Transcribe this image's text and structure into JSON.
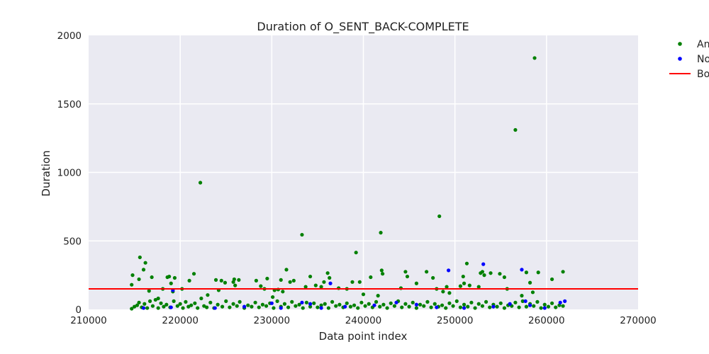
{
  "chart_data": {
    "type": "scatter",
    "title": "Duration of O_SENT_BACK-COMPLETE",
    "xlabel": "Data point index",
    "ylabel": "Duration",
    "xlim": [
      210000,
      270000
    ],
    "ylim": [
      0,
      2000
    ],
    "xticks": [
      210000,
      220000,
      230000,
      240000,
      250000,
      260000,
      270000
    ],
    "yticks": [
      0,
      500,
      1000,
      1500,
      2000
    ],
    "grid": true,
    "legend": {
      "placement": "outside-right",
      "entries": [
        "An",
        "No",
        "Bo"
      ]
    },
    "colors": {
      "anomaly": "#008000",
      "normal": "#0000ff",
      "boundary": "#ff0000",
      "plot_bg": "#eaeaf2",
      "grid": "#ffffff"
    },
    "boundary_value": 150,
    "series": [
      {
        "name": "An",
        "color": "#008000",
        "points": [
          [
            214700,
            180
          ],
          [
            214800,
            250
          ],
          [
            215500,
            220
          ],
          [
            215600,
            380
          ],
          [
            216000,
            290
          ],
          [
            216200,
            340
          ],
          [
            216600,
            135
          ],
          [
            216900,
            235
          ],
          [
            217600,
            80
          ],
          [
            218100,
            150
          ],
          [
            218600,
            235
          ],
          [
            218800,
            240
          ],
          [
            219000,
            190
          ],
          [
            219200,
            130
          ],
          [
            219400,
            230
          ],
          [
            220200,
            150
          ],
          [
            221000,
            210
          ],
          [
            221500,
            260
          ],
          [
            222200,
            925
          ],
          [
            223000,
            105
          ],
          [
            223900,
            215
          ],
          [
            224200,
            140
          ],
          [
            224500,
            210
          ],
          [
            224900,
            195
          ],
          [
            225900,
            220
          ],
          [
            225800,
            200
          ],
          [
            226000,
            175
          ],
          [
            226400,
            215
          ],
          [
            228300,
            210
          ],
          [
            228800,
            170
          ],
          [
            229200,
            150
          ],
          [
            229500,
            225
          ],
          [
            230100,
            90
          ],
          [
            230300,
            140
          ],
          [
            230700,
            145
          ],
          [
            231000,
            215
          ],
          [
            231200,
            130
          ],
          [
            231600,
            290
          ],
          [
            232000,
            200
          ],
          [
            232400,
            210
          ],
          [
            233300,
            545
          ],
          [
            233700,
            165
          ],
          [
            234200,
            240
          ],
          [
            234800,
            175
          ],
          [
            235400,
            165
          ],
          [
            235700,
            200
          ],
          [
            236100,
            265
          ],
          [
            236300,
            230
          ],
          [
            237300,
            155
          ],
          [
            238200,
            150
          ],
          [
            238800,
            200
          ],
          [
            239200,
            415
          ],
          [
            239600,
            200
          ],
          [
            240000,
            110
          ],
          [
            240800,
            235
          ],
          [
            241600,
            100
          ],
          [
            241900,
            560
          ],
          [
            242000,
            285
          ],
          [
            242100,
            260
          ],
          [
            244100,
            155
          ],
          [
            244600,
            275
          ],
          [
            244800,
            240
          ],
          [
            245800,
            190
          ],
          [
            246900,
            275
          ],
          [
            247600,
            230
          ],
          [
            248000,
            150
          ],
          [
            248300,
            680
          ],
          [
            248700,
            130
          ],
          [
            249100,
            165
          ],
          [
            249400,
            120
          ],
          [
            250600,
            170
          ],
          [
            250900,
            240
          ],
          [
            251000,
            190
          ],
          [
            251300,
            335
          ],
          [
            251600,
            175
          ],
          [
            252600,
            165
          ],
          [
            252800,
            265
          ],
          [
            253000,
            275
          ],
          [
            253200,
            250
          ],
          [
            253900,
            265
          ],
          [
            254900,
            260
          ],
          [
            255400,
            235
          ],
          [
            255700,
            150
          ],
          [
            256600,
            1310
          ],
          [
            257300,
            100
          ],
          [
            257800,
            270
          ],
          [
            258200,
            195
          ],
          [
            258500,
            125
          ],
          [
            258700,
            1835
          ],
          [
            259100,
            270
          ],
          [
            260600,
            220
          ],
          [
            261800,
            275
          ],
          [
            214700,
            5
          ],
          [
            215000,
            20
          ],
          [
            215300,
            30
          ],
          [
            215500,
            50
          ],
          [
            215800,
            15
          ],
          [
            216100,
            40
          ],
          [
            216400,
            10
          ],
          [
            216700,
            60
          ],
          [
            217000,
            25
          ],
          [
            217300,
            70
          ],
          [
            217600,
            10
          ],
          [
            217900,
            45
          ],
          [
            218200,
            20
          ],
          [
            218500,
            35
          ],
          [
            218900,
            15
          ],
          [
            219300,
            60
          ],
          [
            219700,
            25
          ],
          [
            220000,
            40
          ],
          [
            220300,
            10
          ],
          [
            220600,
            55
          ],
          [
            220900,
            20
          ],
          [
            221200,
            30
          ],
          [
            221600,
            45
          ],
          [
            221900,
            10
          ],
          [
            222300,
            80
          ],
          [
            222600,
            25
          ],
          [
            222900,
            15
          ],
          [
            223300,
            50
          ],
          [
            223700,
            10
          ],
          [
            224100,
            35
          ],
          [
            224600,
            20
          ],
          [
            225000,
            60
          ],
          [
            225400,
            15
          ],
          [
            225800,
            40
          ],
          [
            226200,
            25
          ],
          [
            226500,
            55
          ],
          [
            227000,
            10
          ],
          [
            227400,
            30
          ],
          [
            227800,
            20
          ],
          [
            228200,
            50
          ],
          [
            228600,
            15
          ],
          [
            229000,
            35
          ],
          [
            229400,
            25
          ],
          [
            229800,
            45
          ],
          [
            230200,
            10
          ],
          [
            230600,
            60
          ],
          [
            231000,
            20
          ],
          [
            231400,
            40
          ],
          [
            231800,
            15
          ],
          [
            232200,
            55
          ],
          [
            232600,
            25
          ],
          [
            233000,
            35
          ],
          [
            233400,
            10
          ],
          [
            233800,
            50
          ],
          [
            234200,
            20
          ],
          [
            234600,
            45
          ],
          [
            235000,
            15
          ],
          [
            235400,
            30
          ],
          [
            235800,
            40
          ],
          [
            236200,
            10
          ],
          [
            236600,
            55
          ],
          [
            237000,
            25
          ],
          [
            237400,
            35
          ],
          [
            237800,
            15
          ],
          [
            238200,
            45
          ],
          [
            238600,
            20
          ],
          [
            239000,
            30
          ],
          [
            239400,
            10
          ],
          [
            239800,
            50
          ],
          [
            240200,
            25
          ],
          [
            240600,
            40
          ],
          [
            241000,
            15
          ],
          [
            241400,
            55
          ],
          [
            241800,
            20
          ],
          [
            242200,
            35
          ],
          [
            242600,
            10
          ],
          [
            243000,
            45
          ],
          [
            243400,
            25
          ],
          [
            243800,
            60
          ],
          [
            244200,
            15
          ],
          [
            244600,
            40
          ],
          [
            245000,
            20
          ],
          [
            245400,
            50
          ],
          [
            245800,
            10
          ],
          [
            246200,
            35
          ],
          [
            246600,
            25
          ],
          [
            247000,
            55
          ],
          [
            247400,
            15
          ],
          [
            247800,
            40
          ],
          [
            248200,
            20
          ],
          [
            248600,
            30
          ],
          [
            249000,
            10
          ],
          [
            249400,
            45
          ],
          [
            249800,
            25
          ],
          [
            250200,
            60
          ],
          [
            250600,
            15
          ],
          [
            251000,
            35
          ],
          [
            251400,
            20
          ],
          [
            251800,
            50
          ],
          [
            252200,
            10
          ],
          [
            252600,
            40
          ],
          [
            253000,
            25
          ],
          [
            253400,
            55
          ],
          [
            253800,
            15
          ],
          [
            254200,
            35
          ],
          [
            254600,
            20
          ],
          [
            255000,
            45
          ],
          [
            255400,
            10
          ],
          [
            255800,
            30
          ],
          [
            256200,
            25
          ],
          [
            256600,
            50
          ],
          [
            257000,
            15
          ],
          [
            257400,
            60
          ],
          [
            257800,
            20
          ],
          [
            258200,
            40
          ],
          [
            258600,
            25
          ],
          [
            259000,
            55
          ],
          [
            259400,
            10
          ],
          [
            259800,
            35
          ],
          [
            260200,
            20
          ],
          [
            260600,
            45
          ],
          [
            261000,
            15
          ],
          [
            261400,
            30
          ],
          [
            261800,
            25
          ]
        ]
      },
      {
        "name": "No",
        "color": "#0000ff",
        "points": [
          [
            216000,
            10
          ],
          [
            219000,
            15
          ],
          [
            219200,
            140
          ],
          [
            223800,
            10
          ],
          [
            227000,
            20
          ],
          [
            230000,
            45
          ],
          [
            231000,
            10
          ],
          [
            233300,
            50
          ],
          [
            234200,
            40
          ],
          [
            235400,
            10
          ],
          [
            236400,
            190
          ],
          [
            238000,
            20
          ],
          [
            241200,
            30
          ],
          [
            243600,
            50
          ],
          [
            245800,
            35
          ],
          [
            248000,
            15
          ],
          [
            249300,
            285
          ],
          [
            251000,
            10
          ],
          [
            253100,
            330
          ],
          [
            254200,
            20
          ],
          [
            256000,
            40
          ],
          [
            257300,
            290
          ],
          [
            257700,
            60
          ],
          [
            258200,
            30
          ],
          [
            259800,
            10
          ],
          [
            261500,
            50
          ],
          [
            262000,
            60
          ]
        ]
      }
    ]
  }
}
